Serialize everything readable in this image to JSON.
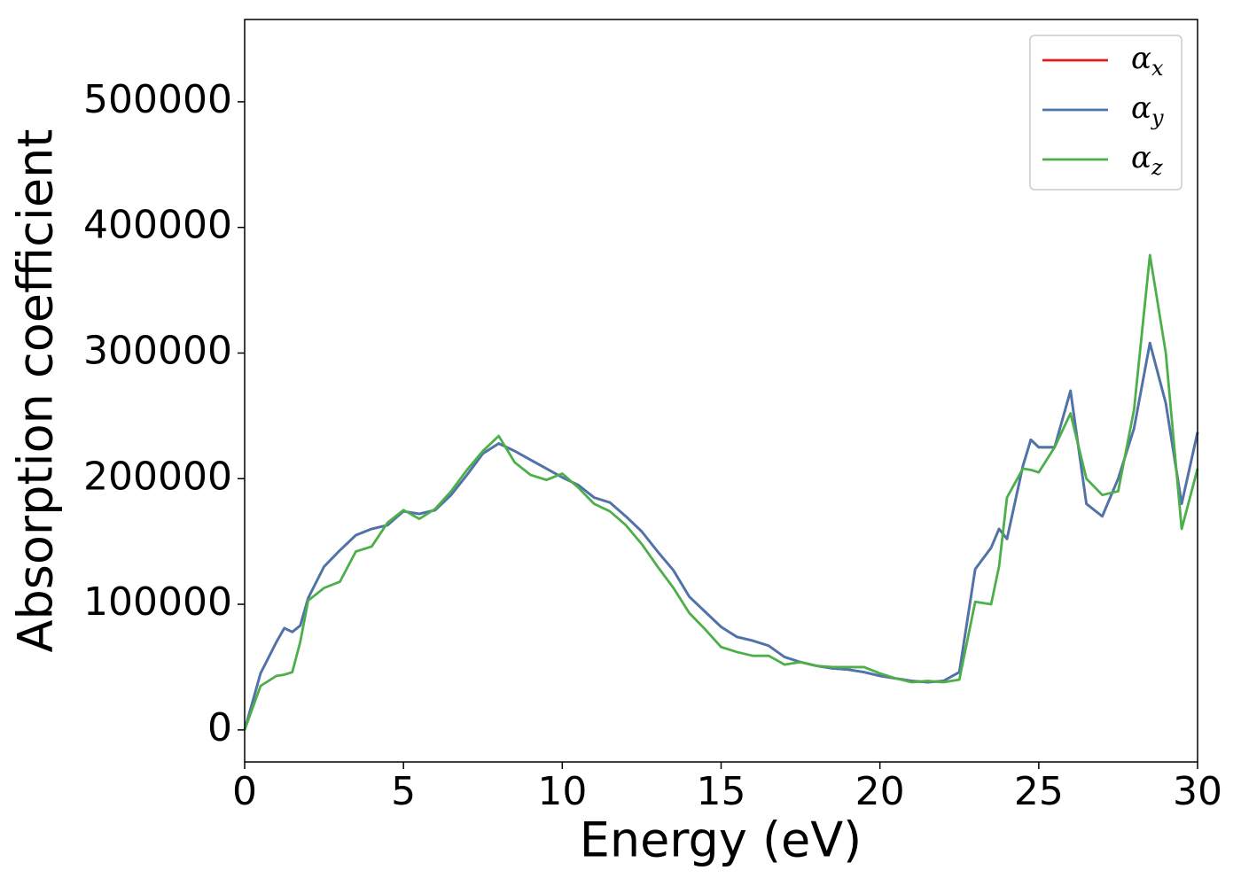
{
  "chart_data": {
    "type": "line",
    "xlabel": "Energy (eV)",
    "ylabel": "Absorption coefficient",
    "x": [
      0,
      0.5,
      1,
      1.25,
      1.5,
      1.75,
      2,
      2.5,
      3,
      3.5,
      4,
      4.5,
      5,
      5.5,
      6,
      6.5,
      7,
      7.5,
      8,
      8.5,
      9,
      9.5,
      10,
      10.5,
      11,
      11.5,
      12,
      12.5,
      13,
      13.5,
      14,
      14.5,
      15,
      15.5,
      16,
      16.5,
      17,
      17.5,
      18,
      18.5,
      19,
      19.5,
      20,
      20.5,
      21,
      21.5,
      22,
      22.5,
      23,
      23.5,
      23.75,
      24,
      24.5,
      24.75,
      25,
      25.5,
      26,
      26.5,
      27,
      27.5,
      28,
      28.5,
      29,
      29.5,
      30
    ],
    "series": [
      {
        "name": "αx",
        "color": "#e41a1c",
        "values": [
          0,
          45000,
          70000,
          81000,
          78000,
          83000,
          105000,
          130000,
          143000,
          155000,
          160000,
          163000,
          174000,
          172000,
          175000,
          187000,
          203000,
          220000,
          228000,
          222000,
          215000,
          208000,
          201000,
          195000,
          185000,
          181000,
          170000,
          158000,
          142000,
          127000,
          106000,
          94000,
          82000,
          74000,
          71000,
          67000,
          58000,
          54000,
          51000,
          49000,
          48000,
          46000,
          43000,
          41000,
          39000,
          38000,
          39000,
          46000,
          128000,
          145000,
          160000,
          152000,
          210000,
          231000,
          225000,
          225000,
          270000,
          180000,
          170000,
          200000,
          240000,
          308000,
          260000,
          180000,
          237000
        ]
      },
      {
        "name": "αy",
        "color": "#4a76b0",
        "values": [
          0,
          45000,
          70000,
          81000,
          78000,
          83000,
          105000,
          130000,
          143000,
          155000,
          160000,
          163000,
          174000,
          172000,
          175000,
          187000,
          203000,
          220000,
          228000,
          222000,
          215000,
          208000,
          201000,
          195000,
          185000,
          181000,
          170000,
          158000,
          142000,
          127000,
          106000,
          94000,
          82000,
          74000,
          71000,
          67000,
          58000,
          54000,
          51000,
          49000,
          48000,
          46000,
          43000,
          41000,
          39000,
          38000,
          39000,
          46000,
          128000,
          145000,
          160000,
          152000,
          210000,
          231000,
          225000,
          225000,
          270000,
          180000,
          170000,
          200000,
          240000,
          308000,
          260000,
          180000,
          237000
        ]
      },
      {
        "name": "αz",
        "color": "#4daf4a",
        "values": [
          0,
          35000,
          43000,
          44000,
          46000,
          70000,
          103000,
          113000,
          118000,
          142000,
          146000,
          165000,
          175000,
          168000,
          176000,
          190000,
          207000,
          222000,
          234000,
          213000,
          203000,
          199000,
          204000,
          193000,
          180000,
          174000,
          163000,
          148000,
          130000,
          113000,
          93000,
          80000,
          66000,
          62000,
          59000,
          59000,
          52000,
          54000,
          51000,
          50000,
          50000,
          50000,
          45000,
          41000,
          38000,
          39000,
          38000,
          40000,
          102000,
          100000,
          130000,
          185000,
          208000,
          207000,
          205000,
          225000,
          252000,
          200000,
          187000,
          190000,
          255000,
          378000,
          300000,
          160000,
          208000
        ]
      }
    ],
    "xlim": [
      0,
      30
    ],
    "xticks": [
      0,
      5,
      10,
      15,
      20,
      25,
      30
    ],
    "ylim": [
      -25500,
      565500
    ],
    "yticks": [
      0,
      100000,
      200000,
      300000,
      400000,
      500000
    ],
    "legend": "upper right"
  }
}
